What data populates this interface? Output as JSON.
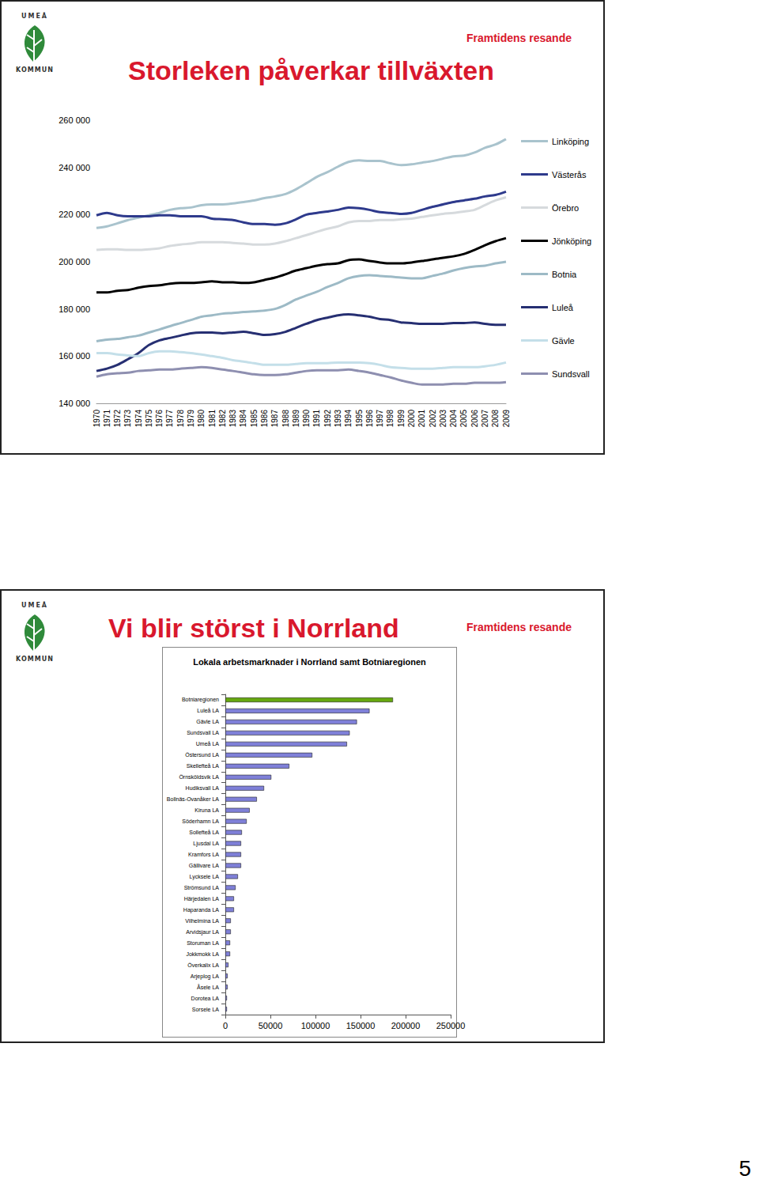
{
  "page": {
    "logo": [
      "UMEÅ",
      "KOMMUN"
    ],
    "slides": [
      {
        "title": "Storleken påverkar tillväxten",
        "tag": "Framtidens resande"
      },
      {
        "title": "Vi blir störst i Norrland",
        "tag": "Framtidens resande"
      }
    ],
    "page_number": 5
  },
  "chart_data": [
    {
      "type": "line",
      "categories": [
        "1970",
        "1971",
        "1972",
        "1973",
        "1974",
        "1975",
        "1976",
        "1977",
        "1978",
        "1979",
        "1980",
        "1981",
        "1982",
        "1983",
        "1984",
        "1985",
        "1986",
        "1987",
        "1988",
        "1989",
        "1990",
        "1991",
        "1992",
        "1993",
        "1994",
        "1995",
        "1996",
        "1997",
        "1998",
        "1999",
        "2000",
        "2001",
        "2002",
        "2003",
        "2004",
        "2005",
        "2006",
        "2007",
        "2008",
        "2009"
      ],
      "series": [
        {
          "name": "Linköping",
          "color": "#a9c3cd",
          "values": [
            214300,
            215000,
            216300,
            217700,
            218700,
            219700,
            220700,
            222000,
            222700,
            223000,
            224000,
            224300,
            224300,
            224700,
            225300,
            226000,
            227000,
            227700,
            228700,
            230700,
            233300,
            236000,
            238000,
            240300,
            242300,
            243000,
            242700,
            242700,
            241700,
            241000,
            241300,
            242000,
            242700,
            243700,
            244700,
            245000,
            246300,
            248300,
            249700,
            252000
          ]
        },
        {
          "name": "Västerås",
          "color": "#2e3a8c",
          "values": [
            219700,
            220700,
            219700,
            219300,
            219300,
            219300,
            219700,
            219700,
            219300,
            219300,
            219300,
            218300,
            218000,
            217700,
            216700,
            216000,
            216000,
            215700,
            216300,
            218000,
            220000,
            220700,
            221300,
            222000,
            223000,
            222700,
            222000,
            221000,
            220700,
            220300,
            220700,
            222000,
            223300,
            224300,
            225300,
            226000,
            226700,
            227700,
            228300,
            229700
          ]
        },
        {
          "name": "Örebro",
          "color": "#d6dadd",
          "values": [
            205000,
            205300,
            205300,
            205000,
            205000,
            205300,
            205700,
            206700,
            207300,
            207700,
            208300,
            208300,
            208300,
            208000,
            207700,
            207300,
            207300,
            207700,
            208700,
            210000,
            211300,
            212700,
            214000,
            215000,
            216700,
            217300,
            217300,
            217700,
            217700,
            218000,
            218300,
            219000,
            219700,
            220300,
            220700,
            221300,
            222000,
            224000,
            226000,
            227300
          ]
        },
        {
          "name": "Jönköping",
          "color": "#000000",
          "values": [
            187000,
            187000,
            187700,
            188000,
            189000,
            189700,
            190000,
            190700,
            191000,
            191000,
            191300,
            191700,
            191300,
            191300,
            191000,
            191300,
            192300,
            193300,
            194700,
            196300,
            197300,
            198300,
            199000,
            199300,
            200700,
            201000,
            200300,
            199700,
            199300,
            199300,
            199700,
            200300,
            201000,
            201700,
            202300,
            203300,
            205000,
            207000,
            208700,
            210000
          ]
        },
        {
          "name": "Botnia",
          "color": "#9dbac6",
          "values": [
            166300,
            167000,
            167300,
            168000,
            168700,
            170000,
            171300,
            172700,
            174000,
            175300,
            176700,
            177300,
            178000,
            178300,
            178700,
            179000,
            179300,
            180000,
            181700,
            184000,
            185700,
            187300,
            189300,
            191000,
            193000,
            194000,
            194300,
            194000,
            193700,
            193300,
            193000,
            193000,
            194000,
            195000,
            196300,
            197300,
            198000,
            198300,
            199300,
            200000
          ]
        },
        {
          "name": "Luleå",
          "color": "#262f72",
          "values": [
            153700,
            154700,
            156300,
            158700,
            161300,
            164700,
            166700,
            167700,
            168700,
            169700,
            170000,
            170000,
            169700,
            170000,
            170300,
            169700,
            169000,
            169300,
            170300,
            172000,
            173700,
            175300,
            176300,
            177300,
            177700,
            177300,
            176700,
            175700,
            175300,
            174300,
            174000,
            173700,
            173700,
            173700,
            174000,
            174000,
            174300,
            173700,
            173300,
            173300
          ]
        },
        {
          "name": "Gävle",
          "color": "#c4dfe9",
          "values": [
            161300,
            161300,
            160700,
            160300,
            160000,
            161300,
            162000,
            162000,
            161700,
            161300,
            160700,
            160000,
            159300,
            158300,
            157700,
            157000,
            156300,
            156300,
            156300,
            156700,
            157000,
            157000,
            157000,
            157300,
            157300,
            157300,
            157000,
            156300,
            155300,
            155000,
            154700,
            154700,
            154700,
            155000,
            155300,
            155300,
            155300,
            155700,
            156300,
            157300
          ]
        },
        {
          "name": "Sundsvall",
          "color": "#8e8fb0",
          "values": [
            151300,
            152300,
            152700,
            153000,
            153700,
            154000,
            154300,
            154300,
            154700,
            155000,
            155300,
            155000,
            154300,
            153700,
            153000,
            152300,
            152000,
            152000,
            152300,
            153000,
            153700,
            154000,
            154000,
            154000,
            154300,
            153700,
            153000,
            152000,
            151000,
            149700,
            148700,
            148000,
            148000,
            148000,
            148300,
            148300,
            148700,
            148700,
            148700,
            149000
          ]
        }
      ],
      "ylim": [
        140000,
        260000
      ],
      "yticks": [
        {
          "value": 140000,
          "label": "140 000"
        },
        {
          "value": 160000,
          "label": "160 000"
        },
        {
          "value": 180000,
          "label": "180 000"
        },
        {
          "value": 200000,
          "label": "200 000"
        },
        {
          "value": 220000,
          "label": "220 000"
        },
        {
          "value": 240000,
          "label": "240 000"
        },
        {
          "value": 260000,
          "label": "260 000"
        }
      ],
      "grid": false,
      "legend": "right"
    },
    {
      "type": "bar",
      "title": "Lokala arbetsmarknader i Norrland samt Botniaregionen",
      "orientation": "horizontal",
      "categories": [
        "Botniaregionen",
        "Luleå LA",
        "Gävle LA",
        "Sundsvall LA",
        "Umeå LA",
        "Östersund LA",
        "Skellefteå LA",
        "Örnsköldsvik LA",
        "Hudiksvall LA",
        "Bollnäs-Ovanåker LA",
        "Kiruna LA",
        "Söderhamn LA",
        "Sollefteå LA",
        "Ljusdal LA",
        "Kramfors LA",
        "Gällivare LA",
        "Lycksele LA",
        "Strömsund LA",
        "Härjedalen LA",
        "Haparanda LA",
        "Vilhelmina LA",
        "Arvidsjaur LA",
        "Storuman LA",
        "Jokkmokk LA",
        "Överkalix LA",
        "Arjeplog LA",
        "Åsele LA",
        "Dorotea LA",
        "Sorsele LA"
      ],
      "values": [
        186000,
        160000,
        146000,
        138000,
        135000,
        96500,
        71000,
        51000,
        43000,
        35000,
        27000,
        23700,
        18400,
        17500,
        17500,
        17500,
        14000,
        11400,
        9600,
        9600,
        6100,
        6100,
        5300,
        5300,
        3500,
        2600,
        2600,
        1800,
        1800
      ],
      "colors": [
        "#66a80f",
        "#7f80d8",
        "#7f80d8",
        "#7f80d8",
        "#7f80d8",
        "#7f80d8",
        "#7f80d8",
        "#7f80d8",
        "#7f80d8",
        "#7f80d8",
        "#7f80d8",
        "#7f80d8",
        "#7f80d8",
        "#7f80d8",
        "#7f80d8",
        "#7f80d8",
        "#7f80d8",
        "#7f80d8",
        "#7f80d8",
        "#7f80d8",
        "#7f80d8",
        "#7f80d8",
        "#7f80d8",
        "#7f80d8",
        "#7f80d8",
        "#7f80d8",
        "#7f80d8",
        "#7f80d8",
        "#7f80d8"
      ],
      "xlim": [
        0,
        250000
      ],
      "xticks": [
        0,
        50000,
        100000,
        150000,
        200000,
        250000
      ],
      "grid": false
    }
  ]
}
